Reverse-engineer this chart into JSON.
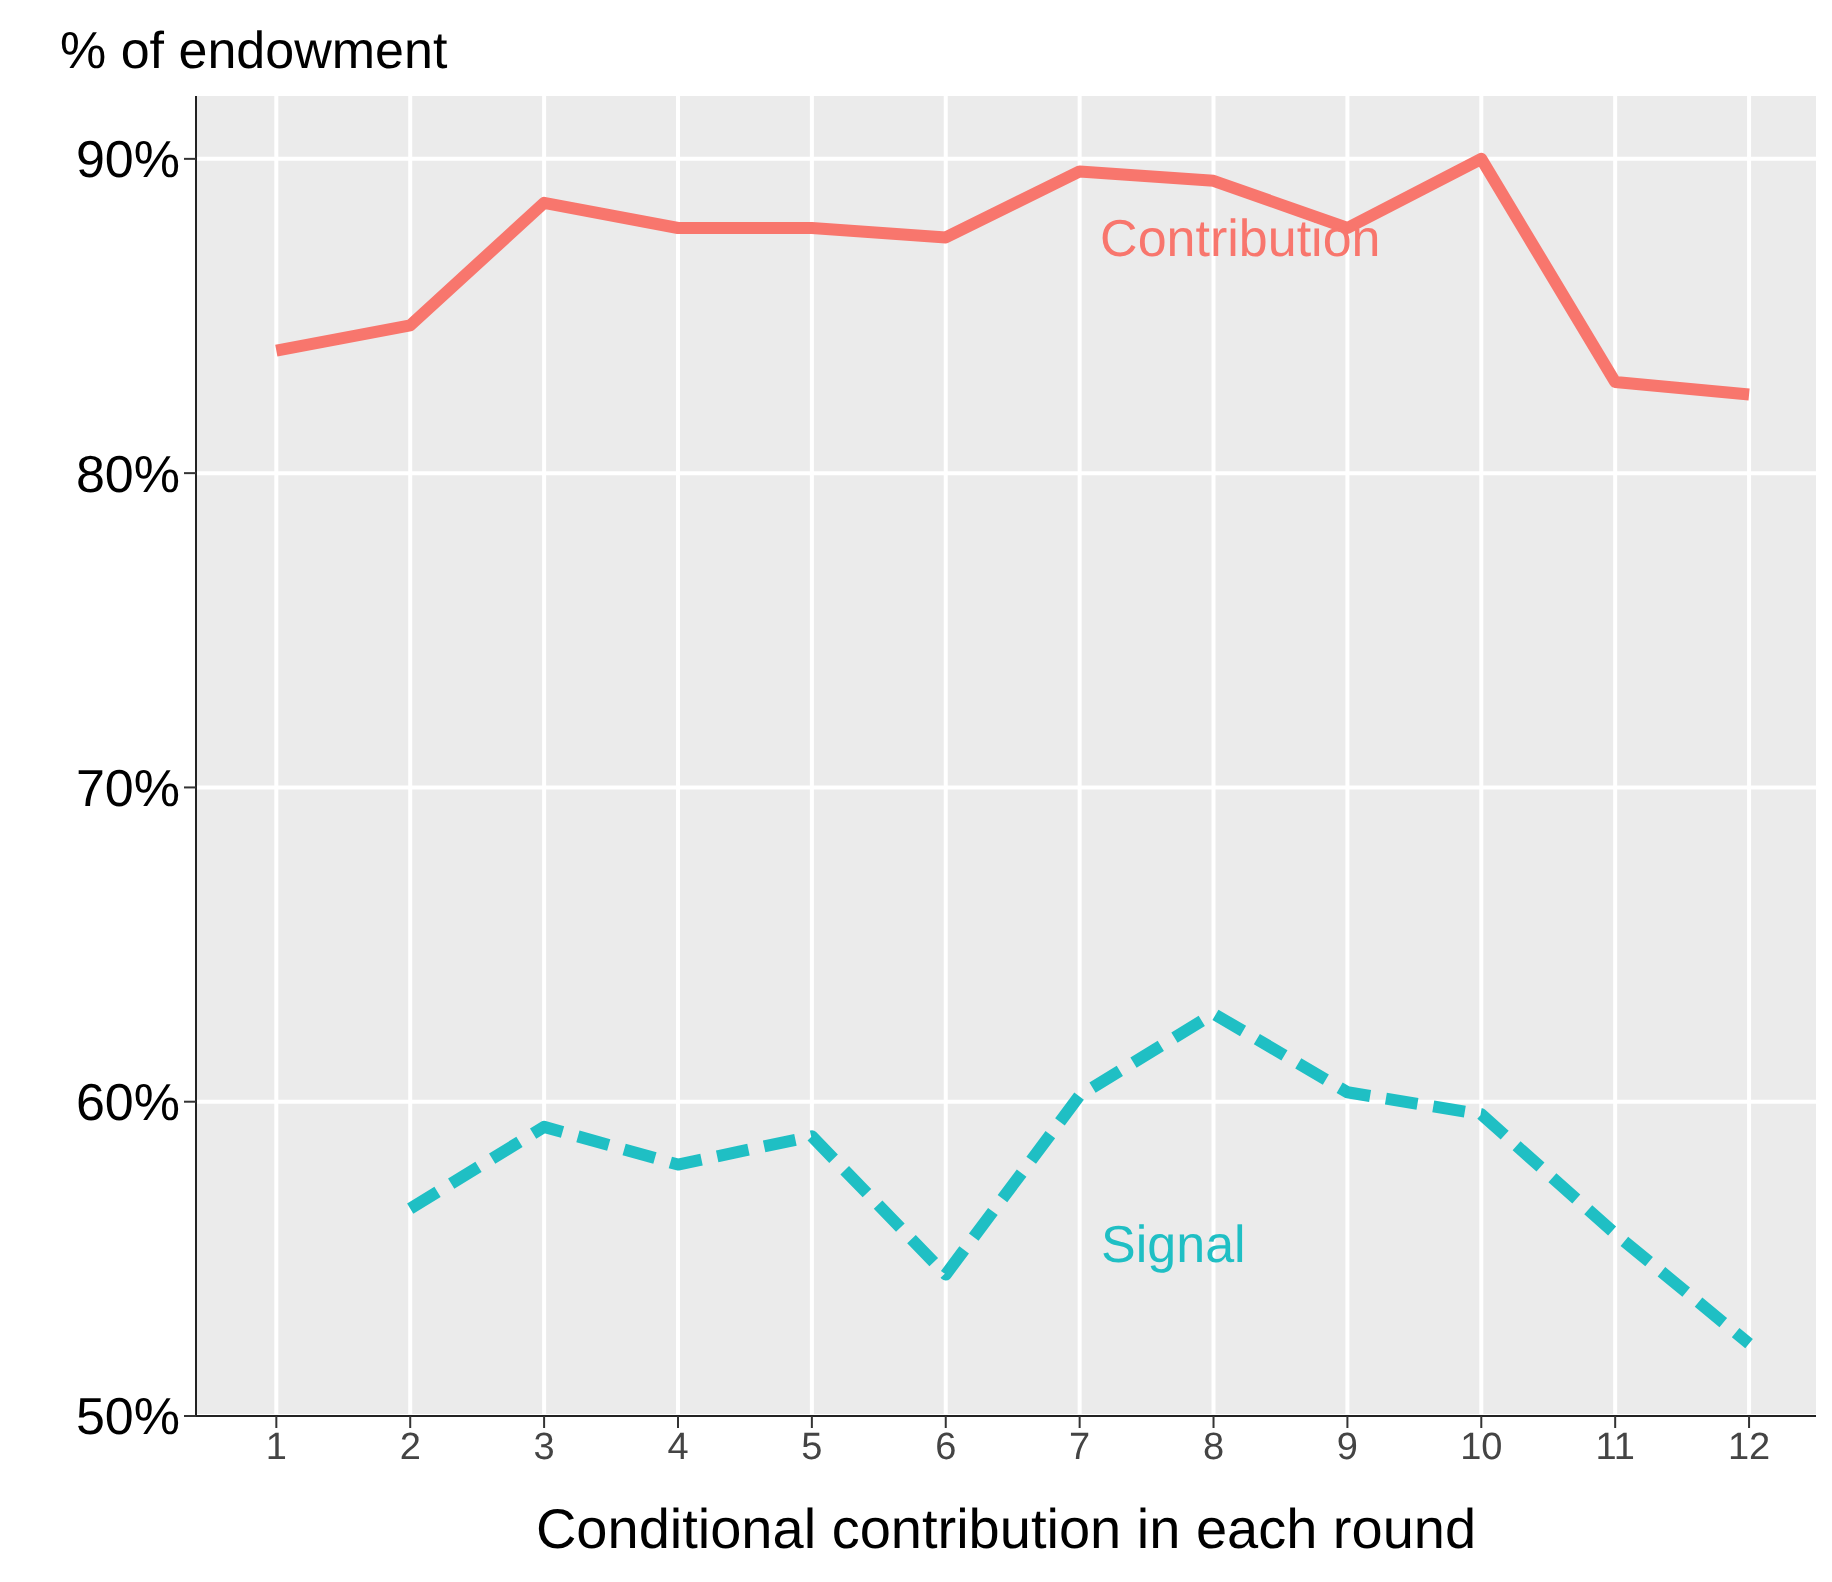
{
  "chart_data": {
    "type": "line",
    "ylabel": "% of endowment",
    "xlabel": "Conditional contribution in each round",
    "x": [
      1,
      2,
      3,
      4,
      5,
      6,
      7,
      8,
      9,
      10,
      11,
      12
    ],
    "series": [
      {
        "name": "Contribution",
        "color": "#f8766d",
        "line_style": "solid",
        "values": [
          83.9,
          84.7,
          88.6,
          87.8,
          87.8,
          87.5,
          89.6,
          89.3,
          87.8,
          90.0,
          82.9,
          82.5
        ]
      },
      {
        "name": "Signal",
        "color": "#1fbfc4",
        "line_style": "dashed",
        "values": [
          null,
          56.6,
          59.2,
          58.0,
          58.9,
          54.5,
          60.2,
          62.8,
          60.3,
          59.6,
          55.8,
          52.3
        ]
      }
    ],
    "xlim": [
      0.4,
      12.5
    ],
    "xticks": [
      1,
      2,
      3,
      4,
      5,
      6,
      7,
      8,
      9,
      10,
      11,
      12
    ],
    "ylim": [
      50,
      92
    ],
    "yticks": [
      {
        "value": 60,
        "label": "60%"
      },
      {
        "value": 70,
        "label": "70%"
      },
      {
        "value": 80,
        "label": "80%"
      },
      {
        "value": 90,
        "label": "90%"
      },
      {
        "value": 50,
        "label": "50%"
      }
    ],
    "grid": true,
    "legend": false,
    "marker": "none"
  }
}
